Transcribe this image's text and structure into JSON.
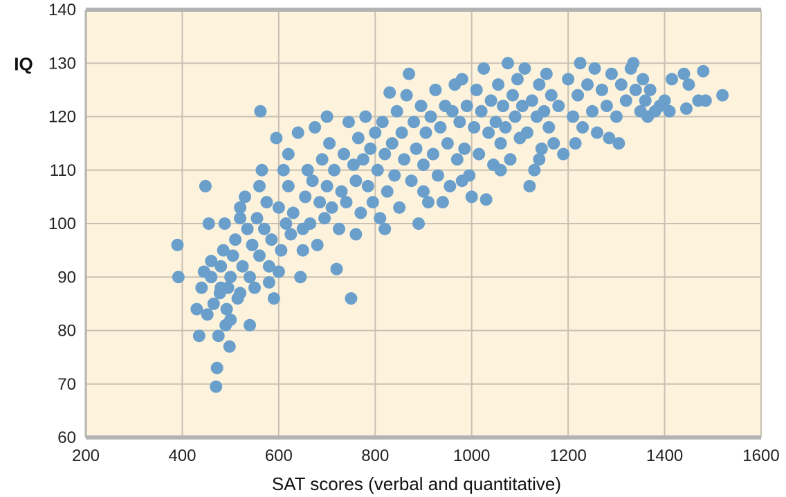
{
  "chart_data": {
    "type": "scatter",
    "title": "",
    "xlabel": "SAT scores (verbal and quantitative)",
    "ylabel": "IQ",
    "xlim": [
      200,
      1600
    ],
    "ylim": [
      60,
      140
    ],
    "xticks": [
      200,
      400,
      600,
      800,
      1000,
      1200,
      1400,
      1600
    ],
    "yticks": [
      60,
      70,
      80,
      90,
      100,
      110,
      120,
      130,
      140
    ],
    "grid": true,
    "colors": {
      "background": "#fdf3dd",
      "grid": "#c8c1b3",
      "axis": "#b3b3b3",
      "point": "#6a9fcb"
    },
    "series": [
      {
        "points": [
          [
            390,
            96
          ],
          [
            392,
            90
          ],
          [
            435,
            79
          ],
          [
            430,
            84
          ],
          [
            440,
            88
          ],
          [
            445,
            91
          ],
          [
            448,
            107
          ],
          [
            452,
            83
          ],
          [
            455,
            100
          ],
          [
            460,
            93
          ],
          [
            465,
            85
          ],
          [
            470,
            69.5
          ],
          [
            472,
            73
          ],
          [
            475,
            79
          ],
          [
            478,
            87
          ],
          [
            480,
            92
          ],
          [
            485,
            95
          ],
          [
            488,
            100
          ],
          [
            490,
            81
          ],
          [
            492,
            84
          ],
          [
            495,
            88
          ],
          [
            498,
            77
          ],
          [
            500,
            90
          ],
          [
            505,
            94
          ],
          [
            510,
            97
          ],
          [
            515,
            86
          ],
          [
            520,
            103
          ],
          [
            525,
            92
          ],
          [
            530,
            105
          ],
          [
            535,
            99
          ],
          [
            540,
            81
          ],
          [
            545,
            96
          ],
          [
            550,
            88
          ],
          [
            555,
            101
          ],
          [
            560,
            94
          ],
          [
            562,
            121
          ],
          [
            565,
            110
          ],
          [
            570,
            99
          ],
          [
            575,
            104
          ],
          [
            580,
            92
          ],
          [
            585,
            97
          ],
          [
            590,
            86
          ],
          [
            595,
            116
          ],
          [
            600,
            103
          ],
          [
            605,
            95
          ],
          [
            610,
            110
          ],
          [
            615,
            100
          ],
          [
            620,
            107
          ],
          [
            625,
            98
          ],
          [
            630,
            102
          ],
          [
            640,
            117
          ],
          [
            645,
            90
          ],
          [
            650,
            95
          ],
          [
            655,
            105
          ],
          [
            660,
            110
          ],
          [
            665,
            100
          ],
          [
            670,
            108
          ],
          [
            675,
            118
          ],
          [
            680,
            96
          ],
          [
            685,
            104
          ],
          [
            690,
            112
          ],
          [
            695,
            101
          ],
          [
            700,
            107
          ],
          [
            705,
            115
          ],
          [
            710,
            103
          ],
          [
            715,
            110
          ],
          [
            720,
            91.5
          ],
          [
            725,
            99
          ],
          [
            730,
            106
          ],
          [
            735,
            113
          ],
          [
            740,
            104
          ],
          [
            745,
            119
          ],
          [
            750,
            86
          ],
          [
            755,
            111
          ],
          [
            760,
            108
          ],
          [
            765,
            116
          ],
          [
            770,
            102
          ],
          [
            775,
            112
          ],
          [
            780,
            120
          ],
          [
            785,
            107
          ],
          [
            790,
            114
          ],
          [
            795,
            104
          ],
          [
            800,
            117
          ],
          [
            805,
            110
          ],
          [
            810,
            101
          ],
          [
            815,
            119
          ],
          [
            820,
            113
          ],
          [
            825,
            106
          ],
          [
            830,
            124.5
          ],
          [
            835,
            115
          ],
          [
            840,
            109
          ],
          [
            845,
            121
          ],
          [
            850,
            103
          ],
          [
            855,
            117
          ],
          [
            860,
            112
          ],
          [
            865,
            124
          ],
          [
            870,
            128
          ],
          [
            875,
            108
          ],
          [
            880,
            119
          ],
          [
            885,
            114
          ],
          [
            890,
            100
          ],
          [
            895,
            122
          ],
          [
            900,
            111
          ],
          [
            905,
            117
          ],
          [
            910,
            104
          ],
          [
            915,
            120
          ],
          [
            920,
            113
          ],
          [
            925,
            125
          ],
          [
            930,
            109
          ],
          [
            935,
            118
          ],
          [
            940,
            104
          ],
          [
            945,
            122
          ],
          [
            950,
            115
          ],
          [
            955,
            107
          ],
          [
            960,
            121
          ],
          [
            965,
            126
          ],
          [
            970,
            112
          ],
          [
            975,
            119
          ],
          [
            980,
            127
          ],
          [
            985,
            114
          ],
          [
            990,
            122
          ],
          [
            995,
            109
          ],
          [
            1000,
            105
          ],
          [
            1005,
            118
          ],
          [
            1010,
            125
          ],
          [
            1015,
            113
          ],
          [
            1020,
            121
          ],
          [
            1025,
            129
          ],
          [
            1030,
            104.5
          ],
          [
            1035,
            117
          ],
          [
            1040,
            123
          ],
          [
            1045,
            111
          ],
          [
            1050,
            119
          ],
          [
            1055,
            126
          ],
          [
            1060,
            115
          ],
          [
            1065,
            122
          ],
          [
            1070,
            118
          ],
          [
            1075,
            130
          ],
          [
            1080,
            112
          ],
          [
            1085,
            124
          ],
          [
            1090,
            120
          ],
          [
            1095,
            127
          ],
          [
            1100,
            116
          ],
          [
            1105,
            122
          ],
          [
            1110,
            129
          ],
          [
            1115,
            117
          ],
          [
            1120,
            107
          ],
          [
            1125,
            123
          ],
          [
            1130,
            110
          ],
          [
            1135,
            120
          ],
          [
            1140,
            126
          ],
          [
            1145,
            114
          ],
          [
            1150,
            121
          ],
          [
            1155,
            128
          ],
          [
            1160,
            118
          ],
          [
            1165,
            124
          ],
          [
            1170,
            115
          ],
          [
            1180,
            122
          ],
          [
            1190,
            113
          ],
          [
            1200,
            127
          ],
          [
            1210,
            120
          ],
          [
            1215,
            115
          ],
          [
            1220,
            124
          ],
          [
            1225,
            130
          ],
          [
            1230,
            118
          ],
          [
            1240,
            126
          ],
          [
            1250,
            121
          ],
          [
            1255,
            129
          ],
          [
            1260,
            117
          ],
          [
            1270,
            125
          ],
          [
            1280,
            122
          ],
          [
            1285,
            116
          ],
          [
            1290,
            128
          ],
          [
            1300,
            120
          ],
          [
            1305,
            115
          ],
          [
            1310,
            126
          ],
          [
            1320,
            123
          ],
          [
            1330,
            129
          ],
          [
            1335,
            130
          ],
          [
            1340,
            125
          ],
          [
            1350,
            121
          ],
          [
            1355,
            127
          ],
          [
            1360,
            123
          ],
          [
            1365,
            120
          ],
          [
            1370,
            125
          ],
          [
            1380,
            121
          ],
          [
            1390,
            122
          ],
          [
            1400,
            123
          ],
          [
            1410,
            121
          ],
          [
            1415,
            127
          ],
          [
            1440,
            128
          ],
          [
            1445,
            121.5
          ],
          [
            1450,
            126
          ],
          [
            1470,
            123
          ],
          [
            1480,
            128.5
          ],
          [
            1485,
            123
          ],
          [
            1520,
            124
          ],
          [
            620,
            113
          ],
          [
            700,
            120
          ],
          [
            760,
            98
          ],
          [
            820,
            99
          ],
          [
            900,
            106
          ],
          [
            980,
            108
          ],
          [
            1060,
            110
          ],
          [
            1140,
            112
          ],
          [
            480,
            88
          ],
          [
            500,
            82
          ],
          [
            520,
            87
          ],
          [
            540,
            90
          ],
          [
            580,
            89
          ],
          [
            460,
            90
          ],
          [
            520,
            101
          ],
          [
            560,
            107
          ],
          [
            600,
            91
          ],
          [
            650,
            99
          ]
        ]
      }
    ]
  }
}
